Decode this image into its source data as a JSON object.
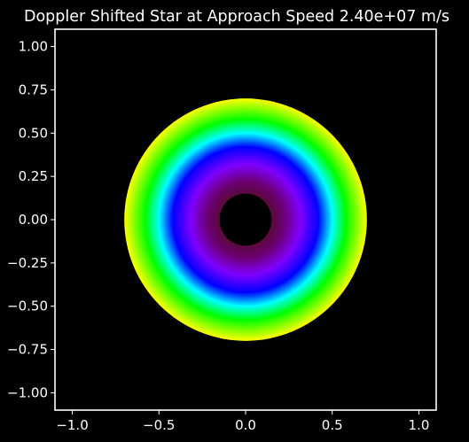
{
  "chart_data": {
    "type": "heatmap",
    "title": "Doppler Shifted Star at Approach Speed 2.40e+07 m/s",
    "xlabel": "",
    "ylabel": "",
    "xlim": [
      -1.1,
      1.1
    ],
    "ylim": [
      -1.1,
      1.1
    ],
    "grid": false,
    "background_color": "#000000",
    "axes_color": "#ffffff",
    "x_ticks": [
      -1.0,
      -0.5,
      0.0,
      0.5,
      1.0
    ],
    "x_tick_labels": [
      "−1.0",
      "−0.5",
      "0.0",
      "0.5",
      "1.0"
    ],
    "y_ticks": [
      1.0,
      0.75,
      0.5,
      0.25,
      0.0,
      -0.25,
      -0.5,
      -0.75,
      -1.0
    ],
    "y_tick_labels": [
      "1.00",
      "0.75",
      "0.50",
      "0.25",
      "0.00",
      "−0.25",
      "−0.50",
      "−0.75",
      "−1.00"
    ],
    "annulus": {
      "center": [
        0.0,
        0.0
      ],
      "inner_radius": 0.15,
      "outer_radius": 0.7,
      "color_stops": [
        {
          "radius": 0.15,
          "color": "#5a0a3a"
        },
        {
          "radius": 0.22,
          "color": "#6a0070"
        },
        {
          "radius": 0.32,
          "color": "#8000ff"
        },
        {
          "radius": 0.42,
          "color": "#0000ff"
        },
        {
          "radius": 0.5,
          "color": "#00ffff"
        },
        {
          "radius": 0.58,
          "color": "#00ff00"
        },
        {
          "radius": 0.7,
          "color": "#ffff00"
        }
      ]
    }
  }
}
